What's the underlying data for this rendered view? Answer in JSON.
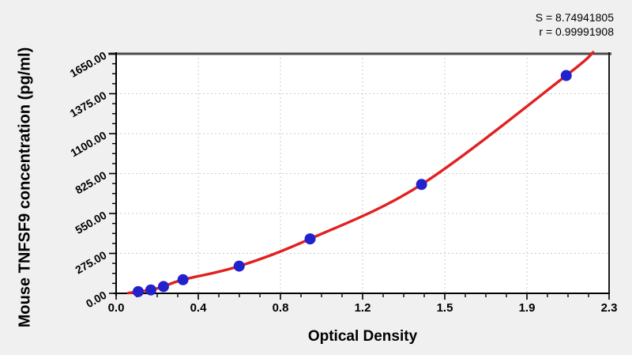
{
  "chart_data": {
    "type": "scatter",
    "title": "",
    "xlabel": "Optical Density",
    "ylabel": "Mouse TNFSF9 concentration (pg/ml)",
    "annotations": {
      "s": "S = 8.74941805",
      "r": "r = 0.99991908"
    },
    "xlim": [
      0,
      2.3
    ],
    "ylim": [
      0,
      1650
    ],
    "x_tick_labels": [
      "0.0",
      "0.4",
      "0.8",
      "1.2",
      "1.5",
      "1.9",
      "2.3"
    ],
    "y_tick_labels": [
      "0.00",
      "275.00",
      "550.00",
      "825.00",
      "1100.00",
      "1375.00",
      "1650.00"
    ],
    "minor_ticks_per_major": 4,
    "grid": true,
    "legend": false,
    "series": [
      {
        "name": "standard-curve-points",
        "points": [
          {
            "od": 0.103,
            "conc": 11.72
          },
          {
            "od": 0.162,
            "conc": 23.44
          },
          {
            "od": 0.221,
            "conc": 46.88
          },
          {
            "od": 0.312,
            "conc": 93.75
          },
          {
            "od": 0.574,
            "conc": 187.5
          },
          {
            "od": 0.905,
            "conc": 375
          },
          {
            "od": 1.425,
            "conc": 750
          },
          {
            "od": 2.1,
            "conc": 1500
          }
        ]
      }
    ],
    "fit_curve_range": {
      "start": {
        "od": 0.058,
        "conc": 2
      },
      "end": {
        "od": 2.225,
        "conc": 1660
      }
    },
    "colors": {
      "curve": "#e12121",
      "points": "#2222cc",
      "grid": "#cccccc",
      "axis": "#000000",
      "frame_top": "#4d4d4d",
      "frame_right": "#1c1c1c",
      "background": "#f0f0f0",
      "plot_background": "#ffffff",
      "text": "#000000"
    }
  }
}
